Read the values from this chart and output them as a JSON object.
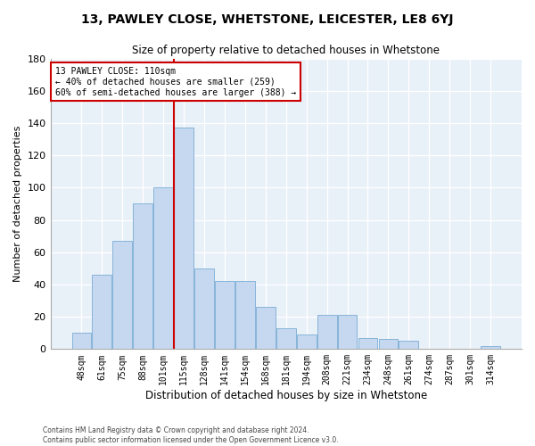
{
  "title": "13, PAWLEY CLOSE, WHETSTONE, LEICESTER, LE8 6YJ",
  "subtitle": "Size of property relative to detached houses in Whetstone",
  "xlabel": "Distribution of detached houses by size in Whetstone",
  "ylabel": "Number of detached properties",
  "bar_color": "#c5d8f0",
  "bar_edge_color": "#7aadd4",
  "background_color": "#e8f0f8",
  "grid_color": "#ffffff",
  "categories": [
    "48sqm",
    "61sqm",
    "75sqm",
    "88sqm",
    "101sqm",
    "115sqm",
    "128sqm",
    "141sqm",
    "154sqm",
    "168sqm",
    "181sqm",
    "194sqm",
    "208sqm",
    "221sqm",
    "234sqm",
    "248sqm",
    "261sqm",
    "274sqm",
    "287sqm",
    "301sqm",
    "314sqm"
  ],
  "values": [
    10,
    46,
    67,
    90,
    100,
    137,
    50,
    42,
    42,
    26,
    13,
    9,
    21,
    21,
    7,
    6,
    5,
    0,
    0,
    0,
    2
  ],
  "ylim": [
    0,
    180
  ],
  "yticks": [
    0,
    20,
    40,
    60,
    80,
    100,
    120,
    140,
    160,
    180
  ],
  "red_line_x": 4.5,
  "annotation_text": "13 PAWLEY CLOSE: 110sqm\n← 40% of detached houses are smaller (259)\n60% of semi-detached houses are larger (388) →",
  "annotation_box_color": "#ffffff",
  "annotation_box_edge": "#cc0000",
  "footer_line1": "Contains HM Land Registry data © Crown copyright and database right 2024.",
  "footer_line2": "Contains public sector information licensed under the Open Government Licence v3.0."
}
